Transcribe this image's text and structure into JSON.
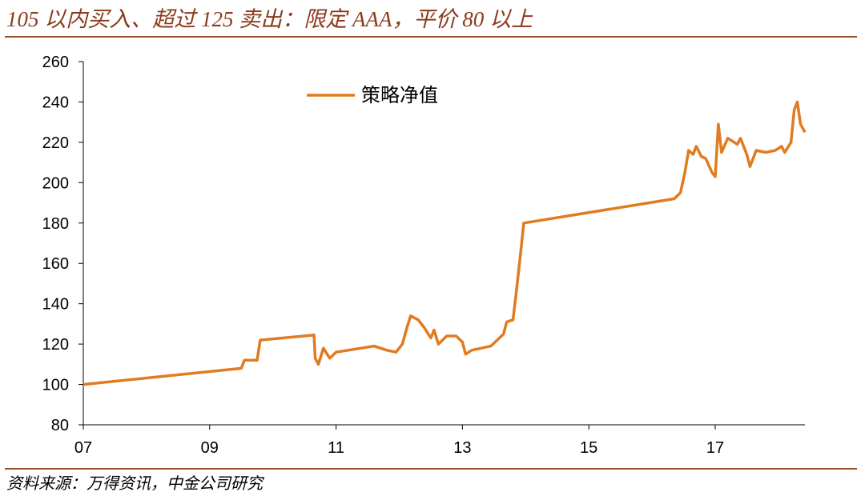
{
  "chart_data": {
    "type": "line",
    "title": "105 以内买入、超过 125 卖出：限定 AAA，平价 80 以上",
    "source": "资料来源：万得资讯，中金公司研究",
    "x": [
      2007.0,
      2009.5,
      2009.55,
      2009.75,
      2009.8,
      2010.65,
      2010.67,
      2010.72,
      2010.8,
      2010.9,
      2011.0,
      2011.2,
      2011.4,
      2011.6,
      2011.8,
      2011.95,
      2012.05,
      2012.12,
      2012.18,
      2012.3,
      2012.4,
      2012.5,
      2012.55,
      2012.62,
      2012.75,
      2012.9,
      2013.0,
      2013.05,
      2013.15,
      2013.3,
      2013.45,
      2013.55,
      2013.65,
      2013.7,
      2013.8,
      2013.85,
      2013.92,
      2013.97,
      2016.35,
      2016.45,
      2016.52,
      2016.58,
      2016.65,
      2016.7,
      2016.78,
      2016.85,
      2016.95,
      2017.0,
      2017.05,
      2017.1,
      2017.2,
      2017.35,
      2017.4,
      2017.5,
      2017.55,
      2017.65,
      2017.8,
      2017.95,
      2018.05,
      2018.1,
      2018.2,
      2018.25,
      2018.3,
      2018.35,
      2018.42
    ],
    "series": [
      {
        "name": "策略净值",
        "color": "#e07b20",
        "values": [
          100,
          108,
          112,
          112,
          122,
          124.5,
          113,
          110,
          118,
          113,
          116,
          117,
          118,
          119,
          117,
          116,
          120,
          128,
          134,
          132,
          128,
          123,
          127,
          120,
          124,
          124,
          121,
          115,
          117,
          118,
          119,
          122,
          125,
          131,
          132,
          145,
          165,
          180,
          192,
          195,
          205,
          216,
          214,
          218,
          213,
          212,
          205,
          203,
          229,
          215,
          222,
          219,
          222,
          214,
          208,
          216,
          215,
          216,
          218,
          215,
          220,
          236,
          240,
          229,
          225
        ]
      }
    ],
    "xlim": [
      2007,
      2018.42
    ],
    "xticks": [
      {
        "value": 2007,
        "label": "07"
      },
      {
        "value": 2009,
        "label": "09"
      },
      {
        "value": 2011,
        "label": "11"
      },
      {
        "value": 2013,
        "label": "13"
      },
      {
        "value": 2015,
        "label": "15"
      },
      {
        "value": 2017,
        "label": "17"
      }
    ],
    "ylim": [
      80,
      260
    ],
    "yticks": [
      80,
      100,
      120,
      140,
      160,
      180,
      200,
      220,
      240,
      260
    ],
    "grid": false
  }
}
